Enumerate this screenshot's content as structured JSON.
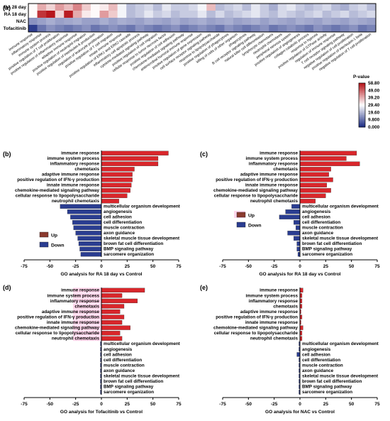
{
  "figure": {
    "panel_labels": [
      "(a)",
      "(b)",
      "(c)",
      "(d)",
      "(e)"
    ]
  },
  "legend_updown": {
    "up": "Up",
    "down": "Down"
  },
  "colors": {
    "up": "#d9262b",
    "down": "#2a3d91",
    "up_highlight": "#ffd7ec",
    "heat_low": "#1f2f86",
    "heat_mid": "#ffffff",
    "heat_high": "#b7161c"
  },
  "chart_data": [
    {
      "panel": "(a)",
      "type": "heatmap",
      "rows": [
        "RA 28 day",
        "RA 18 day",
        "NAC",
        "Tofacitinib"
      ],
      "columns": [
        "immune response",
        "inflammatory response",
        "immune system process",
        "positive regulation of T cell proliferation",
        "positive regulation of inflammatory response",
        "adaptive immune response",
        "positive regulation of neutrophil migration",
        "positive regulation of interleukin-6 production",
        "regulation of leukocyte proliferation",
        "positive regulation of T cell migration",
        "innate immune response",
        "positive regulation of ERK1 and ERK2 cascade",
        "inflammatory cell apoptotic process",
        "cytokine-mediated signaling pathway",
        "positive regulation of cell migration",
        "cellular response to tumor necrosis factor",
        "positive regulation of cell adhesion",
        "chemokine-mediated signaling pathway",
        "antimicrobial humoral immune response",
        "positive regulation of gene expression",
        "cell surface receptor signaling pathway",
        "response to lipopolysaccharide",
        "positive regulation of phagocytosis",
        "killing of cells of other organism",
        "phagocytosis",
        "B cell receptor signaling pathway",
        "natural killer cell differentiation",
        "lymphocyte chemotaxis",
        "neutrophil chemotaxis",
        "peripheral nervous system",
        "positive regulation of angiogenesis",
        "collagen catabolic process",
        "response to hypoxia",
        "positive regulation of GTPase activity",
        "regulation of immune response",
        "T cell receptor signaling pathway",
        "negative regulation of cell proliferation",
        "positive regulation of interleukin-1 beta",
        "negative regulation of T cell proliferation"
      ],
      "values": [
        [
          30,
          40,
          35,
          42,
          38,
          45,
          36,
          30,
          32,
          38,
          28,
          20,
          22,
          24,
          20,
          26,
          22,
          22,
          24,
          28,
          38,
          20,
          22,
          24,
          20,
          26,
          22,
          18,
          24,
          26,
          22,
          20,
          22,
          24,
          20,
          18,
          22,
          24,
          20
        ],
        [
          30,
          55,
          60,
          35,
          58,
          40,
          32,
          30,
          42,
          36,
          28,
          20,
          22,
          26,
          22,
          24,
          20,
          22,
          22,
          26,
          20,
          24,
          20,
          22,
          24,
          26,
          22,
          20,
          24,
          22,
          20,
          22,
          24,
          20,
          22,
          24,
          20,
          22,
          24
        ],
        [
          14,
          16,
          18,
          16,
          17,
          18,
          16,
          16,
          18,
          16,
          18,
          17,
          16,
          18,
          17,
          16,
          18,
          16,
          17,
          18,
          16,
          17,
          18,
          16,
          17,
          18,
          16,
          18,
          17,
          16,
          18,
          17,
          16,
          18,
          17,
          16,
          18,
          17,
          16
        ],
        [
          2,
          10,
          14,
          12,
          10,
          12,
          14,
          10,
          12,
          14,
          12,
          10,
          14,
          12,
          10,
          12,
          14,
          10,
          12,
          14,
          12,
          10,
          14,
          12,
          10,
          12,
          14,
          10,
          12,
          14,
          12,
          10,
          14,
          12,
          10,
          12,
          14,
          10,
          12
        ]
      ],
      "colorbar": {
        "title": "P-value",
        "ticks": [
          "58.80",
          "49.00",
          "39.20",
          "29.40",
          "19.60",
          "9.800",
          "0.000"
        ],
        "range": [
          0,
          58.8
        ]
      }
    },
    {
      "panel": "(b)",
      "type": "bar",
      "orientation": "horizontal",
      "xlabel": "GO analysis for RA 18 day vs Control",
      "xlim": [
        -75,
        75
      ],
      "xticks": [
        "-75",
        "-50",
        "-25",
        "0",
        "25",
        "50",
        "75"
      ],
      "categories": [
        "immune response",
        "immune system process",
        "inflammatory response",
        "chemotaxis",
        "adaptive immune response",
        "positive regulation of IFN-γ production",
        "innate immune response",
        "chemokine-mediated signaling pathway",
        "cellular response to lipopolysaccharide",
        "neutrophil chemotaxis",
        "multicellular organism development",
        "angiogenesis",
        "cell adhesion",
        "cell differentiation",
        "muscle contraction",
        "axon guidance",
        "skeletal muscle tissue development",
        "brown fat cell differentiation",
        "BMP signaling pathway",
        "sarcomere organization"
      ],
      "values": [
        65,
        55,
        55,
        32,
        30,
        30,
        29,
        28,
        25,
        17,
        -40,
        -33,
        -30,
        -28,
        -27,
        -25,
        -23,
        -22,
        -21,
        -20
      ]
    },
    {
      "panel": "(c)",
      "type": "bar",
      "orientation": "horizontal",
      "xlabel": "GO analysis for RA 18 day vs Control",
      "xlim": [
        -75,
        75
      ],
      "xticks": [
        "-75",
        "-50",
        "-25",
        "0",
        "25",
        "50",
        "75"
      ],
      "categories": [
        "immune response",
        "immune system process",
        "inflammatory response",
        "chemotaxis",
        "adaptive immune response",
        "positive regulation of IFN-γ production",
        "innate immune response",
        "chemokine-mediated signaling pathway",
        "cellular response to lipopolysaccharide",
        "neutrophil chemotaxis",
        "multicellular organism development",
        "angiogenesis",
        "cell adhesion",
        "cell differentiation",
        "muscle contraction",
        "axon guidance",
        "skeletal muscle tissue development",
        "brown fat cell differentiation",
        "BMP signaling pathway",
        "sarcomere organization"
      ],
      "values": [
        55,
        45,
        58,
        30,
        28,
        32,
        26,
        30,
        25,
        15,
        -8,
        -14,
        -20,
        -6,
        -4,
        -12,
        -6,
        -3,
        -3,
        -2
      ]
    },
    {
      "panel": "(d)",
      "type": "bar",
      "orientation": "horizontal",
      "xlabel": "GO analysis for Tofacitinib vs Control",
      "xlim": [
        -75,
        75
      ],
      "xticks": [
        "-75",
        "-50",
        "-25",
        "0",
        "25",
        "50",
        "75"
      ],
      "categories": [
        "immune response",
        "immune system process",
        "inflammatory response",
        "chemotaxis",
        "adaptive immune response",
        "positive regulation of IFN-γ production",
        "innate immune response",
        "chemokine-mediated signaling pathway",
        "cellular response to lipopolysaccharide",
        "neutrophil chemotaxis",
        "multicellular organism development",
        "angiogenesis",
        "cell adhesion",
        "cell differentiation",
        "muscle contraction",
        "axon guidance",
        "skeletal muscle tissue development",
        "brown fat cell differentiation",
        "BMP signaling pathway",
        "sarcomere organization"
      ],
      "values": [
        42,
        20,
        35,
        22,
        18,
        22,
        20,
        28,
        18,
        20,
        -1,
        -1,
        -1,
        -1,
        -1,
        -1,
        -1,
        -1,
        -1,
        -1
      ]
    },
    {
      "panel": "(e)",
      "type": "bar",
      "orientation": "horizontal",
      "xlabel": "GO analysis for NAC vs Control",
      "xlim": [
        -75,
        75
      ],
      "xticks": [
        "-75",
        "-50",
        "-25",
        "0",
        "25",
        "50",
        "75"
      ],
      "categories": [
        "immune response",
        "immune system process",
        "inflammatory response",
        "chemotaxis",
        "adaptive immune response",
        "positive regulation of IFN-γ production",
        "innate immune response",
        "chemokine-mediated signaling pathway",
        "cellular response to lipopolysaccharide",
        "neutrophil chemotaxis",
        "multicellular organism development",
        "angiogenesis",
        "cell adhesion",
        "cell differentiation",
        "muscle contraction",
        "axon guidance",
        "skeletal muscle tissue development",
        "brown fat cell differentiation",
        "BMP signaling pathway",
        "sarcomere organization"
      ],
      "values": [
        3,
        2,
        2,
        2,
        1,
        2,
        1,
        3,
        2,
        2,
        -1,
        -1,
        -3,
        -1,
        -1,
        -1,
        -1,
        -1,
        -1,
        -1
      ]
    }
  ]
}
